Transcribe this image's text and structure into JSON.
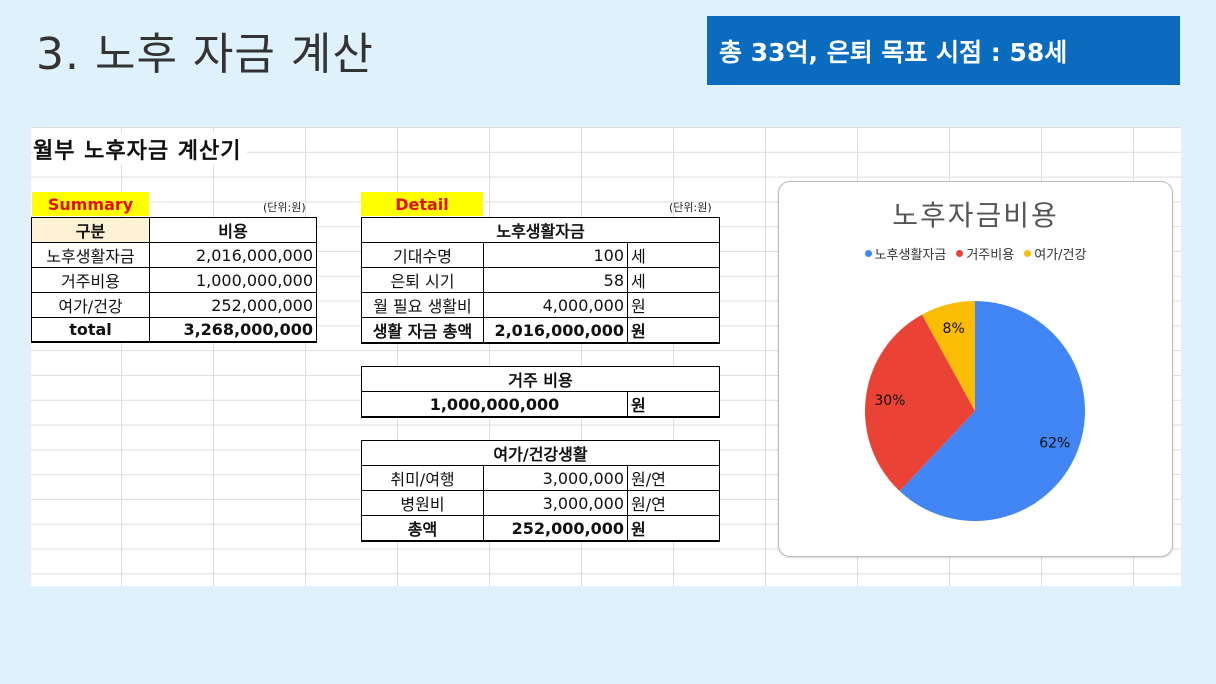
{
  "slide": {
    "title": "3. 노후 자금 계산",
    "banner": "총 33억, 은퇴 목표 시점  : 58세"
  },
  "sheet": {
    "title": "월부 노후자금 계산기",
    "summary": {
      "tag": "Summary",
      "unit": "(단위:원)",
      "headers": [
        "구분",
        "비용"
      ],
      "rows": [
        {
          "label": "노후생활자금",
          "value": "2,016,000,000"
        },
        {
          "label": "거주비용",
          "value": "1,000,000,000"
        },
        {
          "label": "여가/건강",
          "value": "252,000,000"
        }
      ],
      "total": {
        "label": "total",
        "value": "3,268,000,000"
      }
    },
    "detail": {
      "tag": "Detail",
      "unit": "(단위:원)",
      "living": {
        "header": "노후생활자금",
        "rows": [
          {
            "label": "기대수명",
            "value": "100",
            "unit": "세"
          },
          {
            "label": "은퇴 시기",
            "value": "58",
            "unit": "세"
          },
          {
            "label": "월 필요 생활비",
            "value": "4,000,000",
            "unit": "원"
          }
        ],
        "total": {
          "label": "생활 자금 총액",
          "value": "2,016,000,000",
          "unit": "원"
        }
      },
      "housing": {
        "header": "거주 비용",
        "value": "1,000,000,000",
        "unit": "원"
      },
      "leisure": {
        "header": "여가/건강생활",
        "rows": [
          {
            "label": "취미/여행",
            "value": "3,000,000",
            "unit": "원/연"
          },
          {
            "label": "병원비",
            "value": "3,000,000",
            "unit": "원/연"
          }
        ],
        "total": {
          "label": "총액",
          "value": "252,000,000",
          "unit": "원"
        }
      }
    }
  },
  "chart_data": {
    "type": "pie",
    "title": "노후자금비용",
    "legend_position": "top",
    "categories": [
      "노후생활자금",
      "거주비용",
      "여가/건강"
    ],
    "values": [
      62,
      30,
      8
    ],
    "labels": [
      "62%",
      "30%",
      "8%"
    ],
    "colors": [
      "#4285f4",
      "#ea4335",
      "#fbbc04"
    ]
  }
}
